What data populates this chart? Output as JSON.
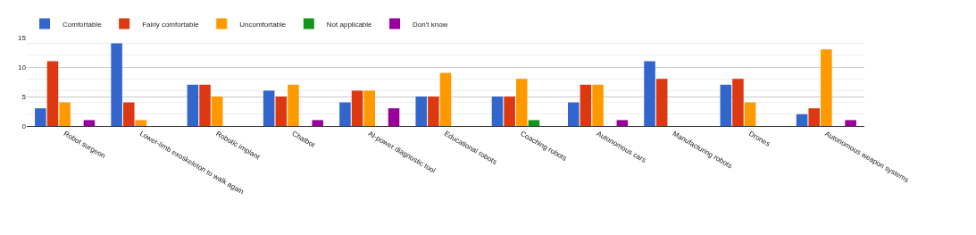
{
  "chart_data": {
    "type": "bar",
    "categories": [
      "Robot surgeon",
      "Lower-limb exoskeleton to walk again",
      "Robotic implant",
      "Chatbot",
      "AI-power diagnostic tool",
      "Educational robots",
      "Coaching robots",
      "Autonomous cars",
      "Manufacturing robots",
      "Drones",
      "Autonomous weapon systems"
    ],
    "series": [
      {
        "name": "Comfortable",
        "color": "#3366cc",
        "values": [
          3,
          14,
          7,
          6,
          4,
          5,
          5,
          4,
          11,
          7,
          2
        ]
      },
      {
        "name": "Fairly comfortable",
        "color": "#dc3912",
        "values": [
          11,
          4,
          7,
          5,
          6,
          5,
          5,
          7,
          8,
          8,
          3
        ]
      },
      {
        "name": "Uncomfortable",
        "color": "#ff9900",
        "values": [
          4,
          1,
          5,
          7,
          6,
          9,
          8,
          7,
          0,
          4,
          13
        ]
      },
      {
        "name": "Not applicable",
        "color": "#109618",
        "values": [
          0,
          0,
          0,
          0,
          0,
          0,
          1,
          0,
          0,
          0,
          0
        ]
      },
      {
        "name": "Don't know",
        "color": "#990099",
        "values": [
          1,
          0,
          0,
          1,
          3,
          0,
          0,
          1,
          0,
          0,
          1
        ]
      }
    ],
    "ylim": [
      0,
      15
    ],
    "yticks": [
      0,
      5,
      10,
      15
    ],
    "grid": "y",
    "legend": "top left"
  }
}
